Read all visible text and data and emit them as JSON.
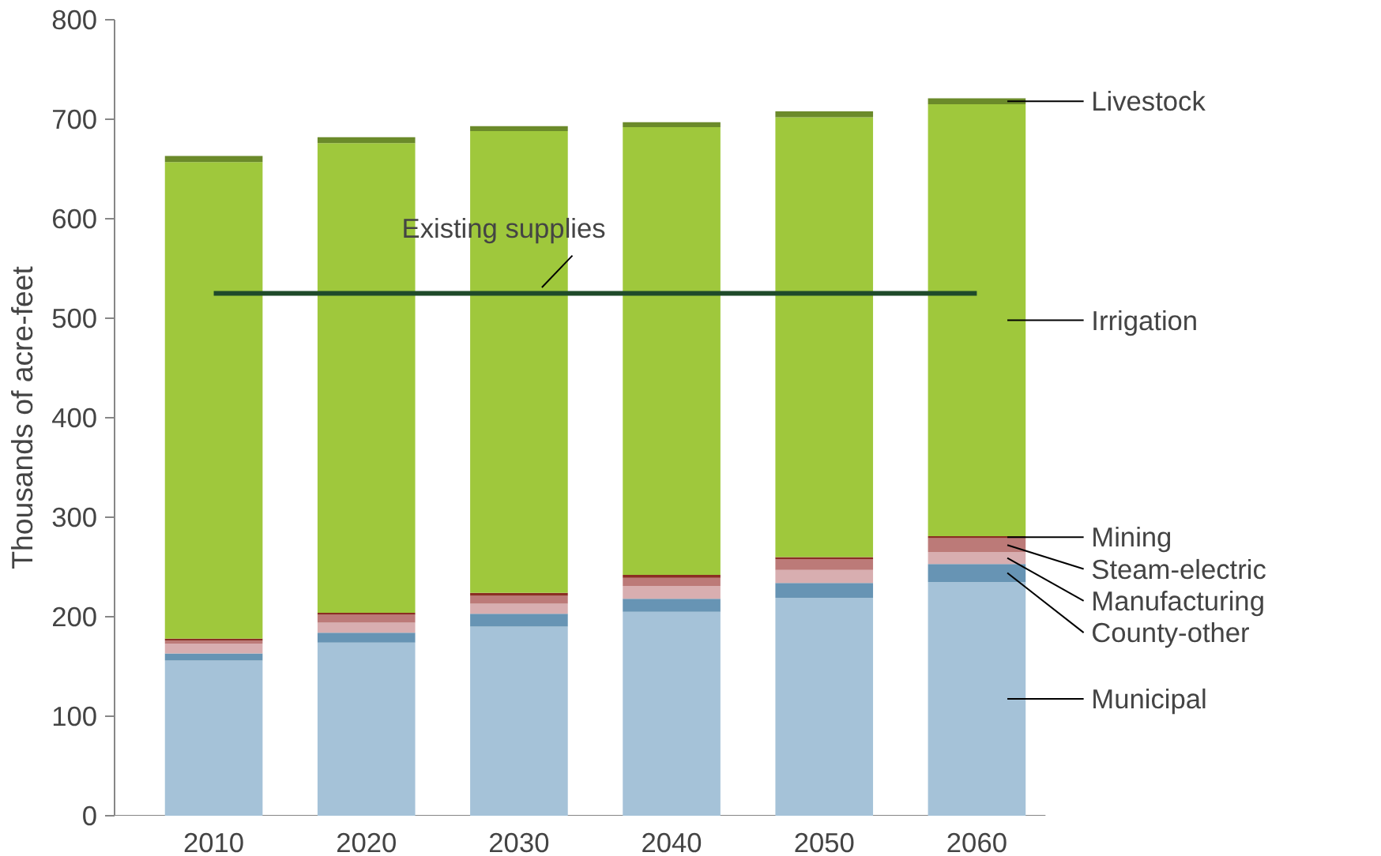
{
  "chart_data": {
    "type": "bar",
    "stacked": true,
    "ylabel": "Thousands of acre-feet",
    "categories": [
      "2010",
      "2020",
      "2030",
      "2040",
      "2050",
      "2060"
    ],
    "ylim": [
      0,
      800
    ],
    "yticks": [
      0,
      100,
      200,
      300,
      400,
      500,
      600,
      700,
      800
    ],
    "grid": false,
    "series": [
      {
        "name": "Municipal",
        "color": "#a5c2d8",
        "values": [
          156,
          174,
          190,
          205,
          219,
          235
        ]
      },
      {
        "name": "County-other",
        "color": "#6794b4",
        "values": [
          7,
          10,
          13,
          13,
          15,
          18
        ]
      },
      {
        "name": "Manufacturing",
        "color": "#d8aeb0",
        "values": [
          10,
          10,
          10,
          13,
          13,
          12
        ]
      },
      {
        "name": "Steam-electric",
        "color": "#bc7a78",
        "values": [
          3,
          8,
          8,
          8,
          11,
          14
        ]
      },
      {
        "name": "Mining",
        "color": "#8b2e23",
        "values": [
          2,
          2,
          3,
          3,
          2,
          2
        ]
      },
      {
        "name": "Irrigation",
        "color": "#9fc83c",
        "values": [
          479,
          472,
          464,
          450,
          442,
          434
        ]
      },
      {
        "name": "Livestock",
        "color": "#6b8a2a",
        "values": [
          6,
          6,
          5,
          5,
          6,
          6
        ]
      },
      {
        "name": "Existing supplies",
        "type": "line",
        "color": "#1f4a2a",
        "values": [
          525,
          525,
          525,
          525,
          525,
          525
        ]
      }
    ]
  }
}
